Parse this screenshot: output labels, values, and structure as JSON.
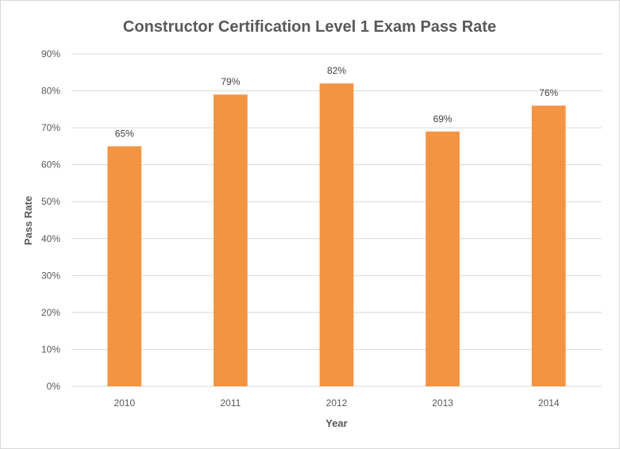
{
  "chart_data": {
    "type": "bar",
    "title": "Constructor Certification Level 1 Exam Pass Rate",
    "xlabel": "Year",
    "ylabel": "Pass Rate",
    "categories": [
      "2010",
      "2011",
      "2012",
      "2013",
      "2014"
    ],
    "values": [
      65,
      79,
      82,
      69,
      76
    ],
    "value_labels": [
      "65%",
      "79%",
      "82%",
      "69%",
      "76%"
    ],
    "ylim": [
      0,
      90
    ],
    "yticks": [
      0,
      10,
      20,
      30,
      40,
      50,
      60,
      70,
      80,
      90
    ],
    "ytick_labels": [
      "0%",
      "10%",
      "20%",
      "30%",
      "40%",
      "50%",
      "60%",
      "70%",
      "80%",
      "90%"
    ],
    "grid": true,
    "bar_color": "#F39443"
  }
}
